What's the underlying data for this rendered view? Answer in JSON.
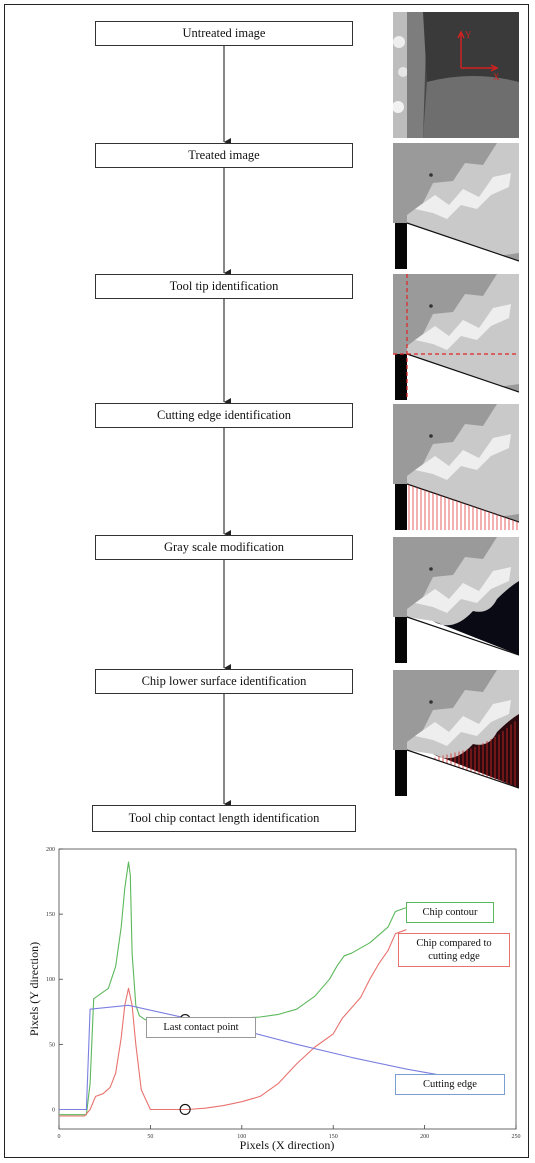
{
  "steps": [
    {
      "label": "Untreated image"
    },
    {
      "label": "Treated image"
    },
    {
      "label": "Tool tip identification"
    },
    {
      "label": "Cutting edge identification"
    },
    {
      "label": "Gray scale modification"
    },
    {
      "label": "Chip lower surface identification"
    },
    {
      "label": "Tool chip contact length identification"
    }
  ],
  "thumbnails": {
    "axis_y_label": "Y",
    "axis_x_label": "X"
  },
  "chart_data": {
    "type": "line",
    "xlabel": "Pixels (X direction)",
    "ylabel": "Pixels (Y direction)",
    "xlim": [
      0,
      250
    ],
    "ylim": [
      -15,
      200
    ],
    "xticks": [
      "0",
      "50",
      "100",
      "150",
      "200",
      "250"
    ],
    "yticks": [
      "0",
      "50",
      "100",
      "150",
      "200"
    ],
    "series": [
      {
        "name": "Chip contour",
        "color": "#5cb85c",
        "x": [
          0,
          15,
          17,
          19,
          23,
          27,
          31,
          34,
          36,
          38,
          39,
          40,
          42,
          44,
          47,
          52,
          60,
          70,
          80,
          90,
          100,
          110,
          120,
          130,
          140,
          148,
          152,
          156,
          160,
          170,
          180,
          184,
          190
        ],
        "y": [
          -4,
          -4,
          20,
          85,
          89,
          93,
          110,
          140,
          170,
          190,
          180,
          120,
          80,
          72,
          69,
          68,
          68,
          68,
          68,
          69,
          70,
          71,
          73,
          77,
          87,
          100,
          110,
          118,
          120,
          128,
          140,
          152,
          155
        ]
      },
      {
        "name": "Chip compared to cutting edge",
        "color": "#e8736f",
        "x": [
          0,
          14,
          17,
          20,
          24,
          28,
          31,
          34,
          36,
          38,
          40,
          42,
          45,
          50,
          60,
          70,
          80,
          90,
          100,
          110,
          120,
          130,
          140,
          150,
          155,
          160,
          165,
          170,
          175,
          180,
          184,
          190
        ],
        "y": [
          -5,
          -5,
          0,
          10,
          12,
          17,
          28,
          55,
          80,
          93,
          80,
          50,
          15,
          0,
          0,
          0,
          1,
          3,
          6,
          10,
          20,
          35,
          48,
          58,
          70,
          78,
          86,
          100,
          112,
          122,
          135,
          138
        ]
      },
      {
        "name": "Cutting edge",
        "color": "#7b7fe0",
        "x": [
          0,
          15,
          17,
          38,
          70,
          100,
          130,
          160,
          190,
          210,
          235
        ],
        "y": [
          0,
          0,
          77,
          80,
          70,
          61,
          50,
          40,
          31,
          26,
          24
        ]
      }
    ],
    "annotations": [
      {
        "text": "Last contact point",
        "markers": [
          {
            "x": 69,
            "y": 69
          },
          {
            "x": 69,
            "y": 0
          }
        ]
      }
    ],
    "legend_placement": "on-plot labels"
  }
}
